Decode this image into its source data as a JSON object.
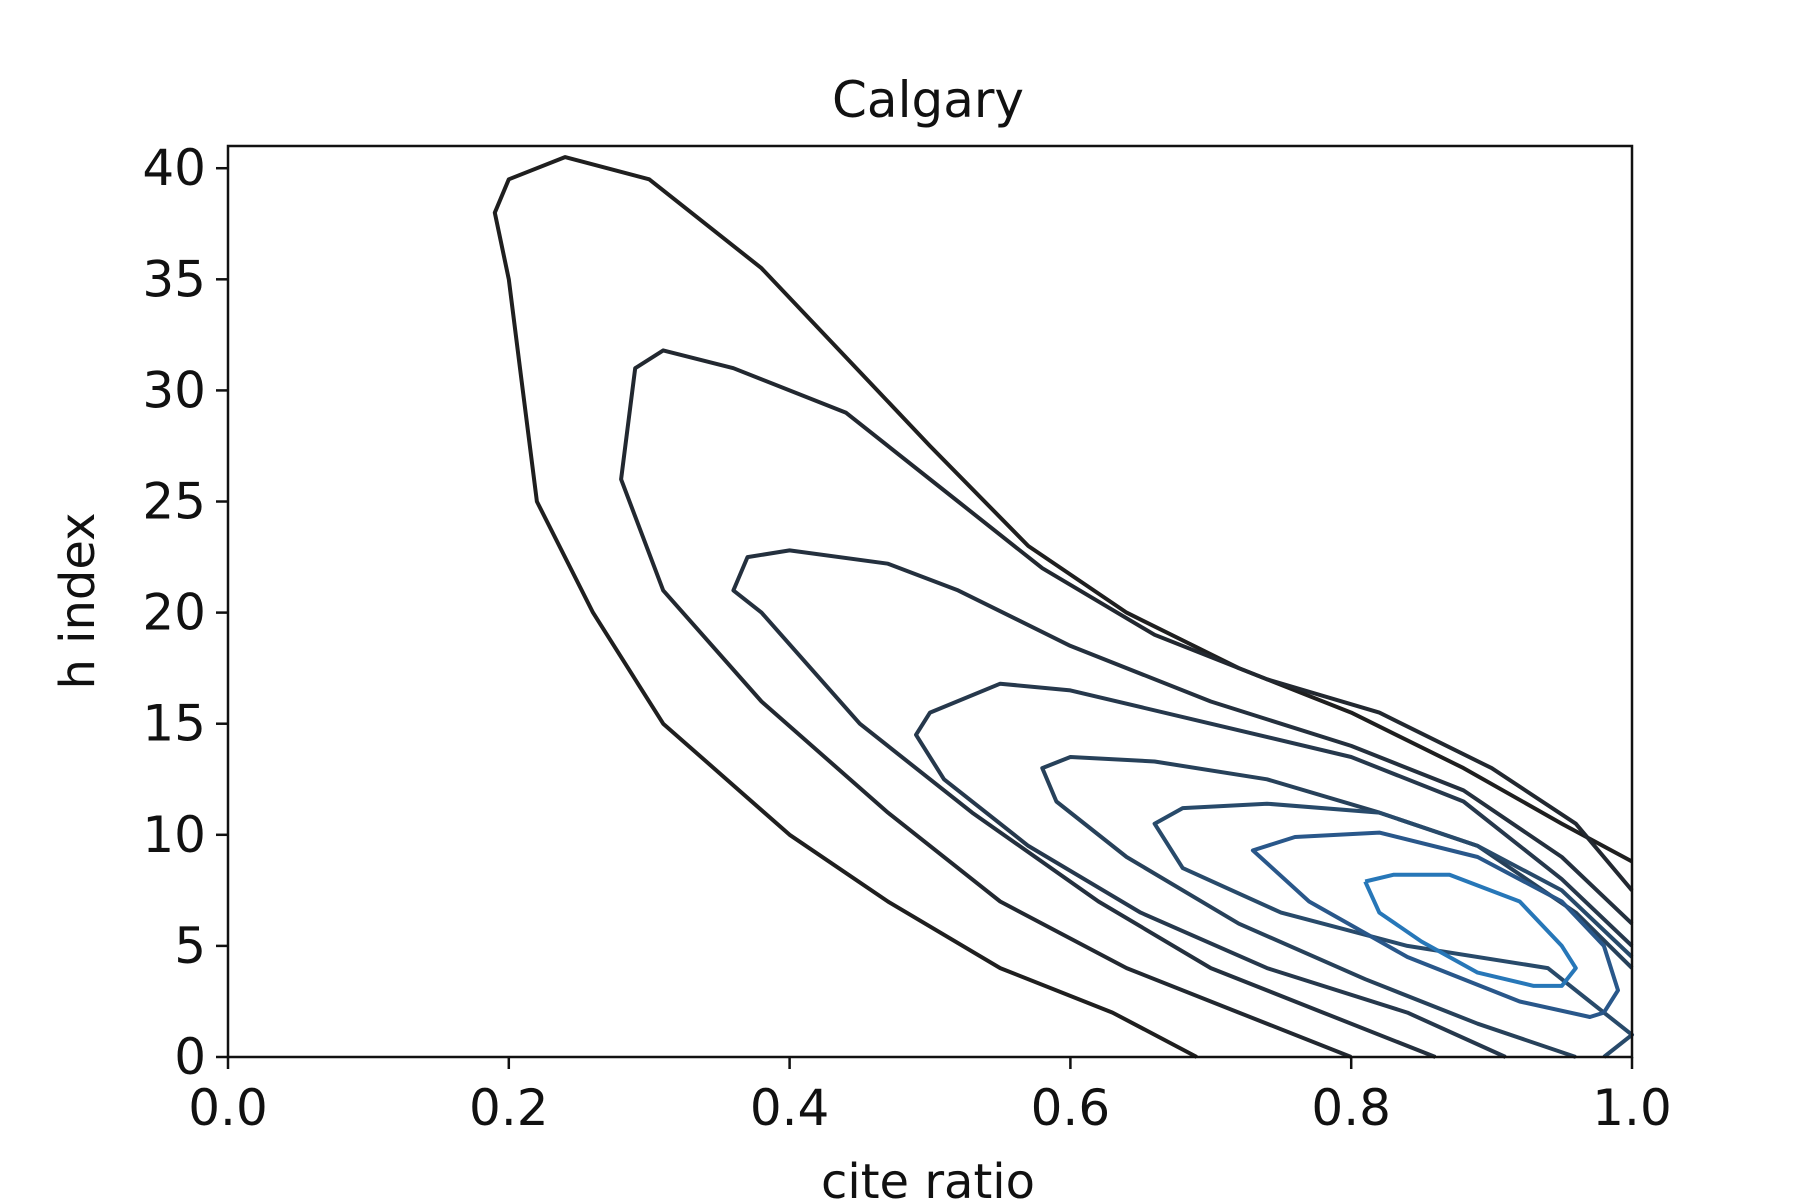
{
  "chart_data": {
    "type": "contour",
    "title": "Calgary",
    "xlabel": "cite ratio",
    "ylabel": "h index",
    "xlim": [
      0.0,
      1.0
    ],
    "ylim": [
      0,
      41
    ],
    "xticks": [
      "0.0",
      "0.2",
      "0.4",
      "0.6",
      "0.8",
      "1.0"
    ],
    "yticks": [
      "0",
      "5",
      "10",
      "15",
      "20",
      "25",
      "30",
      "35",
      "40"
    ],
    "grid": false,
    "legend": "none",
    "colormap": {
      "low": "#1f1f1f",
      "high": "#2777b8"
    },
    "levels": [
      {
        "color": "#1f1f1f",
        "points": [
          [
            0.69,
            0
          ],
          [
            0.63,
            2
          ],
          [
            0.55,
            4
          ],
          [
            0.47,
            7
          ],
          [
            0.4,
            10
          ],
          [
            0.31,
            15
          ],
          [
            0.26,
            20
          ],
          [
            0.22,
            25
          ],
          [
            0.21,
            30
          ],
          [
            0.2,
            35
          ],
          [
            0.19,
            38
          ],
          [
            0.2,
            39.5
          ],
          [
            0.24,
            40.5
          ],
          [
            0.3,
            39.5
          ],
          [
            0.38,
            35.5
          ],
          [
            0.44,
            31.5
          ],
          [
            0.5,
            27.5
          ],
          [
            0.57,
            23
          ],
          [
            0.64,
            20
          ],
          [
            0.72,
            17.5
          ],
          [
            0.8,
            15.5
          ],
          [
            0.88,
            13
          ],
          [
            0.95,
            10.5
          ],
          [
            1.0,
            8.8
          ]
        ]
      },
      {
        "color": "#222830",
        "points": [
          [
            0.8,
            0
          ],
          [
            0.72,
            2
          ],
          [
            0.64,
            4
          ],
          [
            0.55,
            7
          ],
          [
            0.47,
            11
          ],
          [
            0.38,
            16
          ],
          [
            0.31,
            21
          ],
          [
            0.28,
            26
          ],
          [
            0.29,
            31
          ],
          [
            0.31,
            31.8
          ],
          [
            0.36,
            31
          ],
          [
            0.44,
            29
          ],
          [
            0.52,
            25
          ],
          [
            0.58,
            22
          ],
          [
            0.66,
            19
          ],
          [
            0.74,
            17
          ],
          [
            0.82,
            15.5
          ],
          [
            0.9,
            13
          ],
          [
            0.96,
            10.5
          ],
          [
            1.0,
            7.5
          ]
        ]
      },
      {
        "color": "#24303e",
        "points": [
          [
            0.86,
            0
          ],
          [
            0.78,
            2
          ],
          [
            0.7,
            4
          ],
          [
            0.62,
            7
          ],
          [
            0.53,
            11
          ],
          [
            0.45,
            15
          ],
          [
            0.38,
            20
          ],
          [
            0.36,
            21
          ],
          [
            0.37,
            22.5
          ],
          [
            0.4,
            22.8
          ],
          [
            0.47,
            22.2
          ],
          [
            0.52,
            21
          ],
          [
            0.6,
            18.5
          ],
          [
            0.7,
            16
          ],
          [
            0.8,
            14
          ],
          [
            0.88,
            12
          ],
          [
            0.95,
            9
          ],
          [
            1.0,
            6
          ]
        ]
      },
      {
        "color": "#26384c",
        "points": [
          [
            0.91,
            0
          ],
          [
            0.84,
            2
          ],
          [
            0.74,
            4
          ],
          [
            0.65,
            6.5
          ],
          [
            0.57,
            9.5
          ],
          [
            0.51,
            12.5
          ],
          [
            0.49,
            14.5
          ],
          [
            0.5,
            15.5
          ],
          [
            0.55,
            16.8
          ],
          [
            0.6,
            16.5
          ],
          [
            0.7,
            15
          ],
          [
            0.8,
            13.5
          ],
          [
            0.88,
            11.5
          ],
          [
            0.95,
            8
          ],
          [
            1.0,
            5
          ]
        ]
      },
      {
        "color": "#27415a",
        "points": [
          [
            0.96,
            0
          ],
          [
            0.89,
            1.5
          ],
          [
            0.81,
            3.5
          ],
          [
            0.72,
            6
          ],
          [
            0.64,
            9
          ],
          [
            0.59,
            11.5
          ],
          [
            0.58,
            13
          ],
          [
            0.6,
            13.5
          ],
          [
            0.66,
            13.3
          ],
          [
            0.74,
            12.5
          ],
          [
            0.82,
            11
          ],
          [
            0.89,
            9.5
          ],
          [
            0.96,
            6.5
          ],
          [
            1.0,
            4
          ]
        ]
      },
      {
        "color": "#284a6a",
        "points": [
          [
            0.98,
            0
          ],
          [
            1.0,
            1
          ],
          [
            0.97,
            2.5
          ],
          [
            0.94,
            4
          ],
          [
            0.84,
            5
          ],
          [
            0.75,
            6.5
          ],
          [
            0.68,
            8.5
          ],
          [
            0.66,
            10.5
          ],
          [
            0.68,
            11.2
          ],
          [
            0.74,
            11.4
          ],
          [
            0.82,
            11
          ],
          [
            0.89,
            9.5
          ],
          [
            0.95,
            7.5
          ],
          [
            1.0,
            4.5
          ]
        ]
      },
      {
        "color": "#29578a",
        "points": [
          [
            0.98,
            2
          ],
          [
            0.97,
            1.8
          ],
          [
            0.92,
            2.5
          ],
          [
            0.84,
            4.5
          ],
          [
            0.77,
            7
          ],
          [
            0.73,
            9.3
          ],
          [
            0.76,
            9.9
          ],
          [
            0.82,
            10.1
          ],
          [
            0.89,
            9
          ],
          [
            0.95,
            7
          ],
          [
            0.98,
            5
          ],
          [
            0.99,
            3
          ],
          [
            0.98,
            2
          ]
        ]
      },
      {
        "color": "#2777b8",
        "points": [
          [
            0.81,
            7.9
          ],
          [
            0.83,
            8.2
          ],
          [
            0.87,
            8.2
          ],
          [
            0.92,
            7
          ],
          [
            0.95,
            5
          ],
          [
            0.96,
            4
          ],
          [
            0.95,
            3.2
          ],
          [
            0.93,
            3.2
          ],
          [
            0.89,
            3.8
          ],
          [
            0.85,
            5.2
          ],
          [
            0.82,
            6.5
          ],
          [
            0.81,
            7.9
          ]
        ]
      }
    ]
  }
}
